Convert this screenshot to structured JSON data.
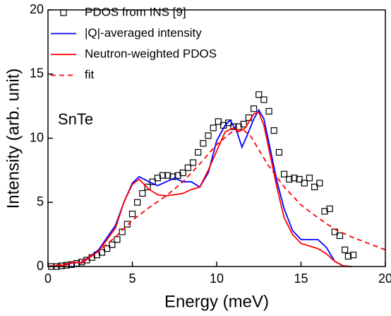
{
  "chart_data": {
    "type": "line",
    "xlabel": "Energy (meV)",
    "ylabel": "Intensity (arb. unit)",
    "annotation": "SnTe",
    "xlim": [
      0,
      20
    ],
    "ylim": [
      0,
      20
    ],
    "xticks": [
      0,
      5,
      10,
      15,
      20
    ],
    "yticks": [
      0,
      5,
      10,
      15,
      20
    ],
    "grid": false,
    "legend": "upper left",
    "series": [
      {
        "name": "PDOS from INS [9]",
        "color": "#000000",
        "marker": "square",
        "line": false,
        "x": [
          0.2,
          0.5,
          0.8,
          1.1,
          1.4,
          1.7,
          2.0,
          2.3,
          2.6,
          2.9,
          3.2,
          3.5,
          3.8,
          4.1,
          4.4,
          4.7,
          5.0,
          5.3,
          5.6,
          5.9,
          6.2,
          6.5,
          6.8,
          7.1,
          7.4,
          7.7,
          8.0,
          8.3,
          8.6,
          8.9,
          9.2,
          9.5,
          9.8,
          10.1,
          10.4,
          10.7,
          11.0,
          11.3,
          11.6,
          11.9,
          12.2,
          12.5,
          12.8,
          13.1,
          13.4,
          13.7,
          14.0,
          14.3,
          14.6,
          14.9,
          15.2,
          15.5,
          15.8,
          16.1,
          16.4,
          16.7,
          17.0,
          17.3,
          17.6,
          17.8,
          18.1
        ],
        "values": [
          0,
          0,
          0.05,
          0.1,
          0.15,
          0.25,
          0.35,
          0.5,
          0.7,
          0.9,
          1.1,
          1.4,
          1.7,
          2.1,
          2.7,
          3.3,
          4.1,
          5.0,
          5.7,
          6.2,
          6.6,
          6.9,
          7.1,
          7.1,
          7.0,
          7.1,
          7.3,
          7.7,
          8.1,
          8.9,
          9.6,
          10.2,
          10.8,
          11.3,
          11.0,
          11.2,
          10.9,
          10.9,
          11.1,
          11.6,
          12.3,
          13.4,
          13.0,
          12.1,
          10.6,
          8.9,
          7.2,
          6.8,
          6.9,
          6.8,
          6.5,
          6.9,
          6.2,
          6.5,
          4.3,
          4.5,
          2.7,
          2.4,
          1.3,
          0.8,
          0.9
        ]
      },
      {
        "name": "|Q|-averaged intensity",
        "color": "#0000ff",
        "line": true,
        "dashed": false,
        "x": [
          0,
          1,
          1.5,
          2,
          3,
          4,
          4.5,
          5,
          5.4,
          6,
          6.5,
          7,
          7.5,
          8,
          8.5,
          9,
          9.5,
          10,
          10.5,
          10.8,
          11.2,
          11.5,
          11.8,
          12.2,
          12.5,
          12.8,
          13.2,
          13.6,
          14,
          14.5,
          15,
          15.5,
          16,
          16.5,
          17,
          17.5,
          18
        ],
        "values": [
          0,
          0.1,
          0.3,
          0.3,
          1.3,
          3.2,
          5,
          6.5,
          7.0,
          6.6,
          6.3,
          6.6,
          6.9,
          6.6,
          6.6,
          6.2,
          7.3,
          9.8,
          11.0,
          11.4,
          10.5,
          9.3,
          10.2,
          11.5,
          12.2,
          11.5,
          9.0,
          6.5,
          4.5,
          2.8,
          2.1,
          2.1,
          2.1,
          1.5,
          0.4,
          0.05,
          0
        ]
      },
      {
        "name": "Neutron-weighted PDOS",
        "color": "#ff0000",
        "line": true,
        "dashed": false,
        "x": [
          0,
          1,
          1.5,
          2,
          3,
          4,
          4.5,
          5,
          5.4,
          6,
          6.5,
          7,
          7.5,
          8,
          8.5,
          9,
          9.5,
          10,
          10.5,
          11,
          11.3,
          11.7,
          12.2,
          12.5,
          12.8,
          13.2,
          13.6,
          14,
          14.5,
          15,
          15.5,
          16,
          16.5,
          17,
          17.5,
          18
        ],
        "values": [
          0,
          0.1,
          0.35,
          0.25,
          1.2,
          3.0,
          5.0,
          6.4,
          6.8,
          6.0,
          5.6,
          5.5,
          5.6,
          5.7,
          6.0,
          6.2,
          7.5,
          9.0,
          10.5,
          10.8,
          10.5,
          10.8,
          11.9,
          12.0,
          11.0,
          8.5,
          6.0,
          3.8,
          2.5,
          1.8,
          1.6,
          1.4,
          1.0,
          0.4,
          0.05,
          0
        ]
      },
      {
        "name": "fit",
        "color": "#ff0000",
        "line": true,
        "dashed": true,
        "x": [
          0,
          2,
          3,
          4,
          5,
          6,
          7,
          8,
          9,
          10,
          11,
          11.5,
          12,
          13,
          14,
          15,
          16,
          17,
          18,
          19,
          20
        ],
        "values": [
          0,
          0.4,
          1.2,
          2.3,
          3.6,
          4.6,
          5.5,
          6.6,
          8.0,
          9.5,
          10.6,
          10.7,
          10.2,
          8.0,
          6.2,
          4.8,
          3.8,
          2.9,
          2.3,
          1.8,
          1.3
        ]
      }
    ]
  }
}
